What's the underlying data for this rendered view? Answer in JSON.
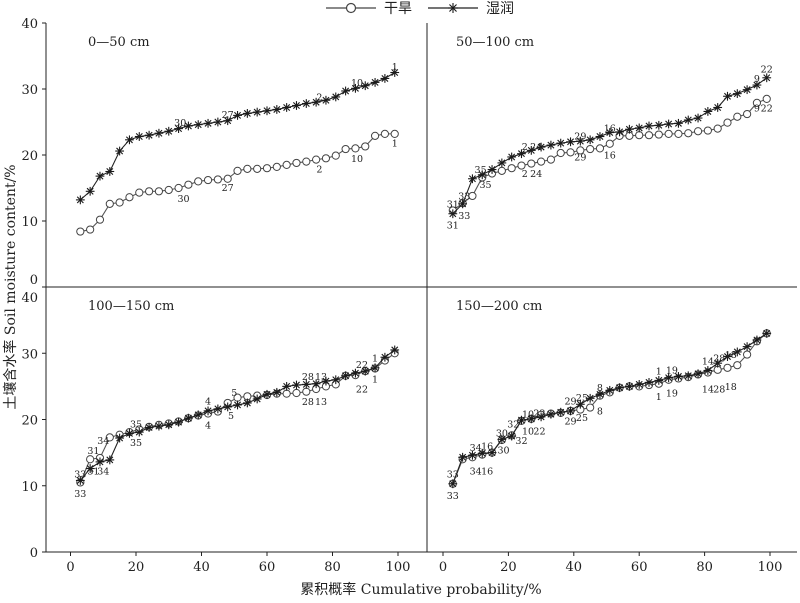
{
  "legend": {
    "dry": "干旱",
    "wet": "湿润"
  },
  "xlabel": "累积概率 Cumulative probability/%",
  "ylabel": "土壤含水率 Soil moisture content/%",
  "colors": {
    "dry_line": "#555555",
    "wet_line": "#222222",
    "axis": "#222222"
  },
  "y_ticks_top": [
    "0",
    "10",
    "20",
    "30",
    "40"
  ],
  "y_ticks_bottom": [
    "0",
    "10",
    "20",
    "30",
    "40"
  ],
  "x_ticks": [
    "0",
    "20",
    "40",
    "60",
    "80",
    "100"
  ],
  "chart_data": [
    {
      "type": "line",
      "panel_label": "0—50 cm",
      "xlim": [
        0,
        100
      ],
      "ylim": [
        0,
        40
      ],
      "series": [
        {
          "name": "干旱",
          "marker": "circle",
          "x": [
            3,
            6,
            9,
            12,
            15,
            18,
            21,
            24,
            27,
            30,
            33,
            36,
            39,
            42,
            45,
            48,
            51,
            54,
            57,
            60,
            63,
            66,
            69,
            72,
            75,
            78,
            81,
            84,
            87,
            90,
            93,
            96,
            99
          ],
          "y": [
            8.4,
            8.7,
            10.2,
            12.6,
            12.8,
            13.6,
            14.3,
            14.5,
            14.5,
            14.7,
            15.0,
            15.5,
            16.0,
            16.2,
            16.3,
            16.4,
            17.6,
            17.9,
            17.9,
            18.0,
            18.2,
            18.5,
            18.8,
            19.0,
            19.3,
            19.5,
            19.9,
            20.9,
            21.0,
            21.3,
            22.9,
            23.2,
            23.2
          ]
        },
        {
          "name": "湿润",
          "marker": "star",
          "x": [
            3,
            6,
            9,
            12,
            15,
            18,
            21,
            24,
            27,
            30,
            33,
            36,
            39,
            42,
            45,
            48,
            51,
            54,
            57,
            60,
            63,
            66,
            69,
            72,
            75,
            78,
            81,
            84,
            87,
            90,
            93,
            96,
            99
          ],
          "y": [
            13.2,
            14.5,
            16.8,
            17.5,
            20.6,
            22.3,
            22.8,
            23.0,
            23.3,
            23.6,
            24.0,
            24.4,
            24.6,
            24.8,
            25.0,
            25.2,
            26.0,
            26.3,
            26.5,
            26.7,
            26.9,
            27.2,
            27.5,
            27.8,
            28.0,
            28.3,
            28.8,
            29.7,
            30.1,
            30.5,
            31.0,
            31.6,
            32.5
          ]
        }
      ],
      "annotations": [
        {
          "text": "1",
          "x": 99,
          "y": 33.4,
          "pos": "above"
        },
        {
          "text": "10",
          "x": 87.5,
          "y": 31.0,
          "pos": "above"
        },
        {
          "text": "2",
          "x": 76,
          "y": 28.8,
          "pos": "above"
        },
        {
          "text": "27",
          "x": 48,
          "y": 26.1,
          "pos": "above"
        },
        {
          "text": "30",
          "x": 33.5,
          "y": 24.9,
          "pos": "above"
        },
        {
          "text": "1",
          "x": 99,
          "y": 21.8,
          "pos": "below"
        },
        {
          "text": "10",
          "x": 87.5,
          "y": 19.5,
          "pos": "below"
        },
        {
          "text": "2",
          "x": 76,
          "y": 17.9,
          "pos": "below"
        },
        {
          "text": "27",
          "x": 48,
          "y": 15.1,
          "pos": "below"
        },
        {
          "text": "30",
          "x": 34.5,
          "y": 13.4,
          "pos": "below"
        }
      ]
    },
    {
      "type": "line",
      "panel_label": "50—100 cm",
      "xlim": [
        0,
        100
      ],
      "ylim": [
        0,
        40
      ],
      "series": [
        {
          "name": "干旱",
          "marker": "circle",
          "x": [
            3,
            6,
            9,
            12,
            15,
            18,
            21,
            24,
            27,
            30,
            33,
            36,
            39,
            42,
            45,
            48,
            51,
            54,
            57,
            60,
            63,
            66,
            69,
            72,
            75,
            78,
            81,
            84,
            87,
            90,
            93,
            96,
            99
          ],
          "y": [
            11.6,
            12.7,
            13.8,
            16.6,
            17.2,
            17.6,
            18.0,
            18.4,
            18.7,
            19.0,
            19.3,
            20.3,
            20.4,
            20.7,
            20.9,
            21.0,
            21.7,
            22.9,
            22.9,
            23.0,
            23.0,
            23.1,
            23.2,
            23.2,
            23.3,
            23.6,
            23.7,
            24.0,
            24.9,
            25.8,
            26.2,
            27.9,
            28.5
          ]
        },
        {
          "name": "湿润",
          "marker": "star",
          "x": [
            3,
            6,
            9,
            12,
            15,
            18,
            21,
            24,
            27,
            30,
            33,
            36,
            39,
            42,
            45,
            48,
            51,
            54,
            57,
            60,
            63,
            66,
            69,
            72,
            75,
            78,
            81,
            84,
            87,
            90,
            93,
            96,
            99
          ],
          "y": [
            11.1,
            12.6,
            16.4,
            17.0,
            17.8,
            18.8,
            19.7,
            20.2,
            20.7,
            21.2,
            21.5,
            21.8,
            22.0,
            22.1,
            22.3,
            22.8,
            23.4,
            23.5,
            23.9,
            24.1,
            24.4,
            24.5,
            24.7,
            24.8,
            25.3,
            25.6,
            26.6,
            27.2,
            28.9,
            29.3,
            29.9,
            30.6,
            31.7
          ]
        }
      ],
      "annotations": [
        {
          "text": "22",
          "x": 99,
          "y": 33.0,
          "pos": "above"
        },
        {
          "text": "9",
          "x": 96,
          "y": 31.6,
          "pos": "above"
        },
        {
          "text": "16",
          "x": 51,
          "y": 24.1,
          "pos": "above"
        },
        {
          "text": "29",
          "x": 42,
          "y": 22.9,
          "pos": "above"
        },
        {
          "text": "2",
          "x": 25,
          "y": 21.3,
          "pos": "above"
        },
        {
          "text": "24",
          "x": 28.5,
          "y": 21.3,
          "pos": "above"
        },
        {
          "text": "35",
          "x": 11.5,
          "y": 17.8,
          "pos": "above"
        },
        {
          "text": "31",
          "x": 3,
          "y": 12.6,
          "pos": "above"
        },
        {
          "text": "33",
          "x": 6.5,
          "y": 13.8,
          "pos": "above"
        },
        {
          "text": "22",
          "x": 99,
          "y": 27.1,
          "pos": "below"
        },
        {
          "text": "9",
          "x": 96,
          "y": 27.1,
          "pos": "below"
        },
        {
          "text": "16",
          "x": 51,
          "y": 20.0,
          "pos": "below"
        },
        {
          "text": "29",
          "x": 42,
          "y": 19.7,
          "pos": "below"
        },
        {
          "text": "2",
          "x": 25,
          "y": 17.2,
          "pos": "below"
        },
        {
          "text": "24",
          "x": 28.5,
          "y": 17.2,
          "pos": "below"
        },
        {
          "text": "35",
          "x": 13,
          "y": 15.5,
          "pos": "below"
        },
        {
          "text": "31",
          "x": 3,
          "y": 9.4,
          "pos": "below"
        },
        {
          "text": "33",
          "x": 6.5,
          "y": 10.8,
          "pos": "below"
        }
      ]
    },
    {
      "type": "line",
      "panel_label": "100—150 cm",
      "xlim": [
        0,
        100
      ],
      "ylim": [
        0,
        40
      ],
      "series": [
        {
          "name": "干旱",
          "marker": "circle",
          "x": [
            3,
            6,
            9,
            12,
            15,
            18,
            21,
            24,
            27,
            30,
            33,
            36,
            39,
            42,
            45,
            48,
            51,
            54,
            57,
            60,
            63,
            66,
            69,
            72,
            75,
            78,
            81,
            84,
            87,
            90,
            93,
            96,
            99
          ],
          "y": [
            10.5,
            14.0,
            14.2,
            17.3,
            17.7,
            18.1,
            18.5,
            18.9,
            19.2,
            19.4,
            19.7,
            20.2,
            20.6,
            20.9,
            21.2,
            22.5,
            23.3,
            23.5,
            23.6,
            23.7,
            23.9,
            23.9,
            24.0,
            24.2,
            24.6,
            25.0,
            25.3,
            26.6,
            26.7,
            27.3,
            27.7,
            28.9,
            30.0
          ]
        },
        {
          "name": "湿润",
          "marker": "star",
          "x": [
            3,
            6,
            9,
            12,
            15,
            18,
            21,
            24,
            27,
            30,
            33,
            36,
            39,
            42,
            45,
            48,
            51,
            54,
            57,
            60,
            63,
            66,
            69,
            72,
            75,
            78,
            81,
            84,
            87,
            90,
            93,
            96,
            99
          ],
          "y": [
            10.8,
            12.6,
            13.6,
            13.9,
            17.2,
            17.9,
            18.1,
            18.8,
            19.0,
            19.2,
            19.6,
            20.2,
            20.7,
            21.3,
            21.6,
            21.9,
            22.2,
            22.5,
            23.1,
            23.8,
            24.1,
            25.0,
            25.2,
            25.3,
            25.4,
            25.8,
            26.0,
            26.6,
            27.0,
            27.3,
            27.8,
            29.4,
            30.5
          ]
        }
      ],
      "annotations": [
        {
          "text": "1",
          "x": 93,
          "y": 29.3,
          "pos": "above"
        },
        {
          "text": "22",
          "x": 89,
          "y": 28.3,
          "pos": "above"
        },
        {
          "text": "28",
          "x": 72.5,
          "y": 26.5,
          "pos": "above"
        },
        {
          "text": "13",
          "x": 76.5,
          "y": 26.5,
          "pos": "above"
        },
        {
          "text": "5",
          "x": 50,
          "y": 24.1,
          "pos": "above"
        },
        {
          "text": "4",
          "x": 42,
          "y": 22.8,
          "pos": "above"
        },
        {
          "text": "35",
          "x": 20,
          "y": 19.3,
          "pos": "above"
        },
        {
          "text": "34",
          "x": 10,
          "y": 16.8,
          "pos": "above"
        },
        {
          "text": "31",
          "x": 7,
          "y": 15.3,
          "pos": "above"
        },
        {
          "text": "33",
          "x": 3,
          "y": 11.8,
          "pos": "above"
        },
        {
          "text": "1",
          "x": 93,
          "y": 26.1,
          "pos": "below"
        },
        {
          "text": "22",
          "x": 89,
          "y": 24.6,
          "pos": "below"
        },
        {
          "text": "28",
          "x": 72.5,
          "y": 22.7,
          "pos": "below"
        },
        {
          "text": "13",
          "x": 76.5,
          "y": 22.7,
          "pos": "below"
        },
        {
          "text": "5",
          "x": 49,
          "y": 20.6,
          "pos": "below"
        },
        {
          "text": "4",
          "x": 42,
          "y": 19.2,
          "pos": "below"
        },
        {
          "text": "35",
          "x": 20,
          "y": 16.5,
          "pos": "below"
        },
        {
          "text": "34",
          "x": 10,
          "y": 12.2,
          "pos": "below"
        },
        {
          "text": "31",
          "x": 7,
          "y": 12.2,
          "pos": "below"
        },
        {
          "text": "33",
          "x": 3,
          "y": 8.8,
          "pos": "below"
        }
      ]
    },
    {
      "type": "line",
      "panel_label": "150—200 cm",
      "xlim": [
        0,
        100
      ],
      "ylim": [
        0,
        40
      ],
      "series": [
        {
          "name": "干旱",
          "marker": "circle",
          "x": [
            3,
            6,
            9,
            12,
            15,
            18,
            21,
            24,
            27,
            30,
            33,
            36,
            39,
            42,
            45,
            48,
            51,
            54,
            57,
            60,
            63,
            66,
            69,
            72,
            75,
            78,
            81,
            84,
            87,
            90,
            93,
            96,
            99
          ],
          "y": [
            10.3,
            14.0,
            14.3,
            14.7,
            15.0,
            16.9,
            17.6,
            19.8,
            20.1,
            20.7,
            20.9,
            21.0,
            21.3,
            21.5,
            21.8,
            23.6,
            24.1,
            24.8,
            25.0,
            25.0,
            25.2,
            25.4,
            26.0,
            26.2,
            26.4,
            26.8,
            27.1,
            27.5,
            27.8,
            28.2,
            29.8,
            31.8,
            33.0
          ]
        },
        {
          "name": "湿润",
          "marker": "star",
          "x": [
            3,
            6,
            9,
            12,
            15,
            18,
            21,
            24,
            27,
            30,
            33,
            36,
            39,
            42,
            45,
            48,
            51,
            54,
            57,
            60,
            63,
            66,
            69,
            72,
            75,
            78,
            81,
            84,
            87,
            90,
            93,
            96,
            99
          ],
          "y": [
            10.3,
            14.3,
            14.6,
            14.9,
            15.0,
            17.0,
            17.5,
            19.9,
            20.1,
            20.4,
            20.8,
            21.1,
            21.3,
            22.3,
            23.2,
            23.8,
            24.4,
            24.8,
            25.0,
            25.3,
            25.6,
            25.9,
            26.3,
            26.5,
            26.6,
            26.9,
            27.4,
            28.5,
            29.5,
            30.2,
            31.0,
            32.0,
            33.0
          ]
        }
      ],
      "annotations": [
        {
          "text": "19",
          "x": 70,
          "y": 27.5,
          "pos": "above"
        },
        {
          "text": "1",
          "x": 66,
          "y": 27.3,
          "pos": "above"
        },
        {
          "text": "14",
          "x": 81,
          "y": 28.8,
          "pos": "above"
        },
        {
          "text": "28",
          "x": 84.5,
          "y": 29.3,
          "pos": "above"
        },
        {
          "text": "18",
          "x": 88,
          "y": 29.8,
          "pos": "above"
        },
        {
          "text": "8",
          "x": 48,
          "y": 24.8,
          "pos": "above"
        },
        {
          "text": "29",
          "x": 39,
          "y": 22.8,
          "pos": "above"
        },
        {
          "text": "25",
          "x": 42.5,
          "y": 23.3,
          "pos": "above"
        },
        {
          "text": "10",
          "x": 26,
          "y": 20.8,
          "pos": "above"
        },
        {
          "text": "22",
          "x": 29.5,
          "y": 21.0,
          "pos": "above"
        },
        {
          "text": "32",
          "x": 21.5,
          "y": 19.3,
          "pos": "above"
        },
        {
          "text": "30",
          "x": 18,
          "y": 18.0,
          "pos": "above"
        },
        {
          "text": "34",
          "x": 10,
          "y": 15.8,
          "pos": "above"
        },
        {
          "text": "16",
          "x": 13.5,
          "y": 16.0,
          "pos": "above"
        },
        {
          "text": "33",
          "x": 3,
          "y": 11.8,
          "pos": "above"
        },
        {
          "text": "19",
          "x": 70,
          "y": 24.0,
          "pos": "below"
        },
        {
          "text": "1",
          "x": 66,
          "y": 23.5,
          "pos": "below"
        },
        {
          "text": "14",
          "x": 81,
          "y": 24.6,
          "pos": "below"
        },
        {
          "text": "28",
          "x": 84.5,
          "y": 24.6,
          "pos": "below"
        },
        {
          "text": "18",
          "x": 88,
          "y": 25.0,
          "pos": "below"
        },
        {
          "text": "8",
          "x": 48,
          "y": 21.3,
          "pos": "below"
        },
        {
          "text": "29",
          "x": 39,
          "y": 19.8,
          "pos": "below"
        },
        {
          "text": "25",
          "x": 42.5,
          "y": 20.3,
          "pos": "below"
        },
        {
          "text": "10",
          "x": 26,
          "y": 18.3,
          "pos": "below"
        },
        {
          "text": "22",
          "x": 29.5,
          "y": 18.3,
          "pos": "below"
        },
        {
          "text": "32",
          "x": 24,
          "y": 16.8,
          "pos": "below"
        },
        {
          "text": "30",
          "x": 18.5,
          "y": 15.4,
          "pos": "below"
        },
        {
          "text": "34",
          "x": 10,
          "y": 12.2,
          "pos": "below"
        },
        {
          "text": "16",
          "x": 13.5,
          "y": 12.2,
          "pos": "below"
        },
        {
          "text": "33",
          "x": 3,
          "y": 8.5,
          "pos": "below"
        }
      ]
    }
  ]
}
